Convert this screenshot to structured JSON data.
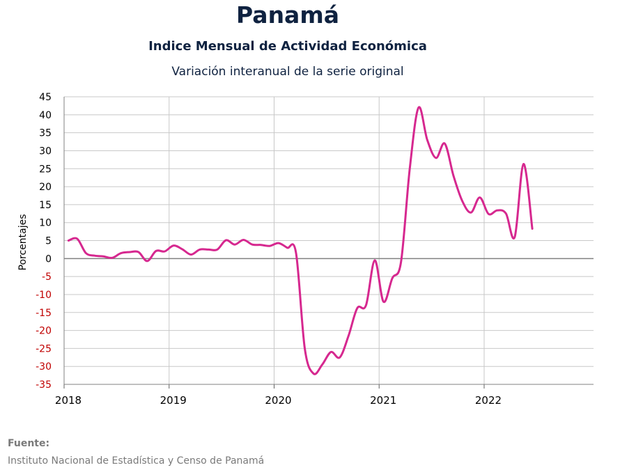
{
  "header": {
    "title": "Panamá",
    "subtitle": "Indice Mensual de  Actividad Económica",
    "subtitle2": "Variación interanual de la serie original"
  },
  "footer": {
    "source_label": "Fuente:",
    "source_text": "Instituto Nacional de Estadística y Censo de Panamá"
  },
  "colors": {
    "line": "#d6288f",
    "negative_tick": "#c00000",
    "positive_tick": "#000000",
    "grid": "#c8c8c8",
    "zero_line": "#808080"
  },
  "chart_data": {
    "type": "line",
    "ylabel": "Porcentajes",
    "xlabel": "",
    "ylim": [
      -35,
      45
    ],
    "y_ticks": [
      45,
      40,
      35,
      30,
      25,
      20,
      15,
      10,
      5,
      0,
      -5,
      -10,
      -15,
      -20,
      -25,
      -30,
      -35
    ],
    "x_ticks": [
      "2018",
      "2019",
      "2020",
      "2021",
      "2022"
    ],
    "grid": true,
    "series": [
      {
        "start": "2018-01",
        "frequency": "monthly",
        "values": [
          5.0,
          5.5,
          1.5,
          0.8,
          0.6,
          0.2,
          1.5,
          1.8,
          1.8,
          -0.7,
          2.1,
          2.0,
          3.6,
          2.6,
          1.1,
          2.5,
          2.5,
          2.5,
          5.1,
          3.9,
          5.2,
          3.9,
          3.8,
          3.5,
          4.3,
          3.0,
          1.6,
          -25.0,
          -32.0,
          -29.5,
          -26.0,
          -27.5,
          -21.5,
          -13.8,
          -13.0,
          -0.5,
          -12.0,
          -5.5,
          -1.0,
          25.0,
          42.0,
          33.0,
          28.0,
          32.0,
          23.0,
          16.0,
          12.8,
          17.0,
          12.4,
          13.4,
          12.5,
          6.0,
          26.3,
          8.3
        ]
      }
    ]
  }
}
